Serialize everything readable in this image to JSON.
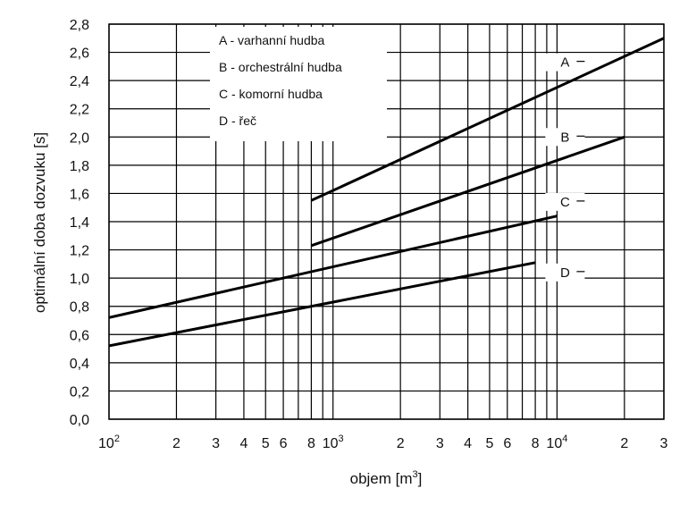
{
  "chart_data": {
    "type": "line",
    "title": "",
    "xlabel": "objem [m",
    "xlabel_sup": "3",
    "xlabel_tail": "]",
    "ylabel": "optimální doba dozvuku [s]",
    "x_scale": "log",
    "xlim": [
      100,
      30000
    ],
    "ylim": [
      0,
      2.8
    ],
    "grid": true,
    "x_ticks": [
      {
        "value": 100,
        "base": "10",
        "exp": "2"
      },
      {
        "value": 200,
        "label": "2"
      },
      {
        "value": 300,
        "label": "3"
      },
      {
        "value": 400,
        "label": "4"
      },
      {
        "value": 500,
        "label": "5"
      },
      {
        "value": 600,
        "label": "6"
      },
      {
        "value": 800,
        "label": "8"
      },
      {
        "value": 1000,
        "base": "10",
        "exp": "3"
      },
      {
        "value": 2000,
        "label": "2"
      },
      {
        "value": 3000,
        "label": "3"
      },
      {
        "value": 4000,
        "label": "4"
      },
      {
        "value": 5000,
        "label": "5"
      },
      {
        "value": 6000,
        "label": "6"
      },
      {
        "value": 8000,
        "label": "8"
      },
      {
        "value": 10000,
        "base": "10",
        "exp": "4"
      },
      {
        "value": 20000,
        "label": "2"
      },
      {
        "value": 30000,
        "label": "3"
      }
    ],
    "x_gridlines": [
      100,
      200,
      300,
      400,
      500,
      600,
      700,
      800,
      900,
      1000,
      2000,
      3000,
      4000,
      5000,
      6000,
      7000,
      8000,
      9000,
      10000,
      20000,
      30000
    ],
    "y_ticks": [
      "0,0",
      "0,2",
      "0,4",
      "0,6",
      "0,8",
      "1,0",
      "1,2",
      "1,4",
      "1,6",
      "1,8",
      "2,0",
      "2,2",
      "2,4",
      "2,6",
      "2,8"
    ],
    "y_tick_values": [
      0,
      0.2,
      0.4,
      0.6,
      0.8,
      1.0,
      1.2,
      1.4,
      1.6,
      1.8,
      2.0,
      2.2,
      2.4,
      2.6,
      2.8
    ],
    "legend": {
      "placement": "top-left",
      "entries": [
        "A - varhanní hudba",
        "B - orchestrální hudba",
        "C - komorní hudba",
        "D - řeč"
      ]
    },
    "series": [
      {
        "name": "A",
        "x": [
          800,
          30000
        ],
        "y": [
          1.55,
          2.7
        ]
      },
      {
        "name": "B",
        "x": [
          800,
          20000
        ],
        "y": [
          1.23,
          2.0
        ]
      },
      {
        "name": "C",
        "x": [
          100,
          10000
        ],
        "y": [
          0.72,
          1.44
        ]
      },
      {
        "name": "D",
        "x": [
          100,
          8000
        ],
        "y": [
          0.52,
          1.11
        ]
      }
    ],
    "series_label_anchor": [
      {
        "name": "A",
        "x": 10000,
        "y": 2.53
      },
      {
        "name": "B",
        "x": 10000,
        "y": 2.0
      },
      {
        "name": "C",
        "x": 10000,
        "y": 1.54
      },
      {
        "name": "D",
        "x": 10000,
        "y": 1.04
      }
    ]
  }
}
